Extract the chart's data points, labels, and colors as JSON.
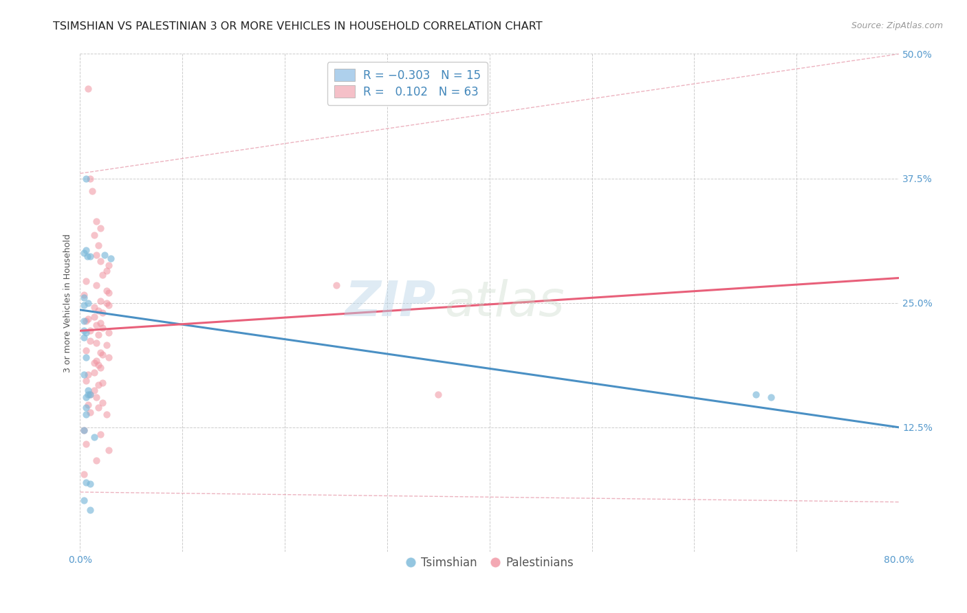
{
  "title": "TSIMSHIAN VS PALESTINIAN 3 OR MORE VEHICLES IN HOUSEHOLD CORRELATION CHART",
  "source": "Source: ZipAtlas.com",
  "ylabel": "3 or more Vehicles in Household",
  "xlim": [
    0.0,
    0.8
  ],
  "ylim": [
    0.0,
    0.5
  ],
  "xticks": [
    0.0,
    0.1,
    0.2,
    0.3,
    0.4,
    0.5,
    0.6,
    0.7,
    0.8
  ],
  "xticklabels": [
    "0.0%",
    "",
    "",
    "",
    "",
    "",
    "",
    "",
    "80.0%"
  ],
  "yticks": [
    0.0,
    0.125,
    0.25,
    0.375,
    0.5
  ],
  "yticklabels": [
    "",
    "12.5%",
    "25.0%",
    "37.5%",
    "50.0%"
  ],
  "watermark_zip": "ZIP",
  "watermark_atlas": "atlas",
  "tsimshian_color": "#7ab8d9",
  "palestinian_color": "#f093a0",
  "tsimshian_marker_size": 55,
  "palestinian_marker_size": 55,
  "tsimshian_line_color": "#4a90c4",
  "palestinian_line_color": "#e8607a",
  "palestinian_ci_color": "#e8a0b0",
  "grid_color": "#cccccc",
  "background_color": "#ffffff",
  "title_fontsize": 11.5,
  "axis_label_fontsize": 9,
  "tick_fontsize": 10,
  "legend_fontsize": 12,
  "source_fontsize": 9,
  "yticklabel_color": "#5599cc",
  "xticklabel_color": "#5599cc",
  "tsimshian_line": [
    0.0,
    0.243,
    0.8,
    0.125
  ],
  "palestinian_line": [
    0.0,
    0.222,
    0.8,
    0.275
  ],
  "palestinian_ci_upper": [
    0.0,
    0.38,
    0.8,
    0.5
  ],
  "palestinian_ci_lower": [
    0.0,
    0.06,
    0.8,
    0.05
  ],
  "tsimshian_points": [
    [
      0.006,
      0.375
    ],
    [
      0.007,
      0.297
    ],
    [
      0.01,
      0.297
    ],
    [
      0.006,
      0.303
    ],
    [
      0.004,
      0.255
    ],
    [
      0.008,
      0.25
    ],
    [
      0.004,
      0.232
    ],
    [
      0.004,
      0.222
    ],
    [
      0.004,
      0.3
    ],
    [
      0.004,
      0.248
    ],
    [
      0.006,
      0.22
    ],
    [
      0.004,
      0.215
    ],
    [
      0.006,
      0.195
    ],
    [
      0.004,
      0.178
    ],
    [
      0.008,
      0.162
    ],
    [
      0.01,
      0.158
    ],
    [
      0.008,
      0.158
    ],
    [
      0.006,
      0.155
    ],
    [
      0.024,
      0.298
    ],
    [
      0.03,
      0.295
    ],
    [
      0.006,
      0.145
    ],
    [
      0.006,
      0.138
    ],
    [
      0.004,
      0.122
    ],
    [
      0.014,
      0.115
    ],
    [
      0.006,
      0.07
    ],
    [
      0.01,
      0.068
    ],
    [
      0.004,
      0.052
    ],
    [
      0.66,
      0.158
    ],
    [
      0.675,
      0.155
    ],
    [
      0.01,
      0.042
    ]
  ],
  "palestinian_points": [
    [
      0.008,
      0.465
    ],
    [
      0.01,
      0.375
    ],
    [
      0.012,
      0.362
    ],
    [
      0.016,
      0.332
    ],
    [
      0.02,
      0.325
    ],
    [
      0.014,
      0.318
    ],
    [
      0.018,
      0.308
    ],
    [
      0.016,
      0.298
    ],
    [
      0.02,
      0.292
    ],
    [
      0.028,
      0.288
    ],
    [
      0.026,
      0.282
    ],
    [
      0.022,
      0.278
    ],
    [
      0.006,
      0.272
    ],
    [
      0.016,
      0.268
    ],
    [
      0.026,
      0.262
    ],
    [
      0.028,
      0.26
    ],
    [
      0.004,
      0.258
    ],
    [
      0.02,
      0.252
    ],
    [
      0.026,
      0.25
    ],
    [
      0.028,
      0.248
    ],
    [
      0.014,
      0.246
    ],
    [
      0.018,
      0.242
    ],
    [
      0.022,
      0.24
    ],
    [
      0.014,
      0.236
    ],
    [
      0.008,
      0.234
    ],
    [
      0.006,
      0.232
    ],
    [
      0.02,
      0.23
    ],
    [
      0.016,
      0.228
    ],
    [
      0.022,
      0.225
    ],
    [
      0.01,
      0.222
    ],
    [
      0.028,
      0.22
    ],
    [
      0.018,
      0.218
    ],
    [
      0.01,
      0.212
    ],
    [
      0.016,
      0.21
    ],
    [
      0.026,
      0.208
    ],
    [
      0.006,
      0.202
    ],
    [
      0.02,
      0.2
    ],
    [
      0.022,
      0.198
    ],
    [
      0.028,
      0.195
    ],
    [
      0.016,
      0.192
    ],
    [
      0.014,
      0.19
    ],
    [
      0.018,
      0.188
    ],
    [
      0.02,
      0.185
    ],
    [
      0.014,
      0.18
    ],
    [
      0.008,
      0.178
    ],
    [
      0.006,
      0.172
    ],
    [
      0.022,
      0.17
    ],
    [
      0.018,
      0.168
    ],
    [
      0.014,
      0.162
    ],
    [
      0.01,
      0.158
    ],
    [
      0.016,
      0.155
    ],
    [
      0.022,
      0.15
    ],
    [
      0.008,
      0.148
    ],
    [
      0.018,
      0.145
    ],
    [
      0.01,
      0.14
    ],
    [
      0.026,
      0.138
    ],
    [
      0.004,
      0.122
    ],
    [
      0.02,
      0.118
    ],
    [
      0.006,
      0.108
    ],
    [
      0.028,
      0.102
    ],
    [
      0.016,
      0.092
    ],
    [
      0.004,
      0.078
    ],
    [
      0.25,
      0.268
    ],
    [
      0.35,
      0.158
    ]
  ]
}
